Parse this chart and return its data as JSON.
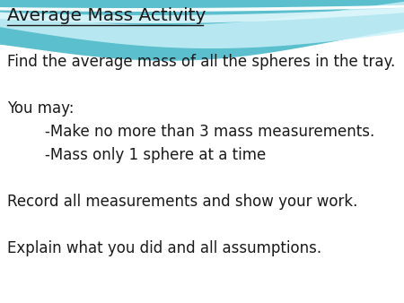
{
  "title": "Average Mass Activity",
  "lines": [
    "Find the average mass of all the spheres in the tray.",
    "",
    "You may:",
    "        -Make no more than 3 mass measurements.",
    "        -Mass only 1 sphere at a time",
    "",
    "Record all measurements and show your work.",
    "",
    "Explain what you did and all assumptions."
  ],
  "bg_color": "#ffffff",
  "text_color": "#1a1a1a",
  "title_fontsize": 14.5,
  "body_fontsize": 12.0,
  "fig_width": 4.5,
  "fig_height": 3.38,
  "dpi": 100,
  "wave_main": "#5bbfce",
  "wave_light1": "#9adce8",
  "wave_light2": "#c8f0f8",
  "wave_white_stripe": "#e8f9fc"
}
